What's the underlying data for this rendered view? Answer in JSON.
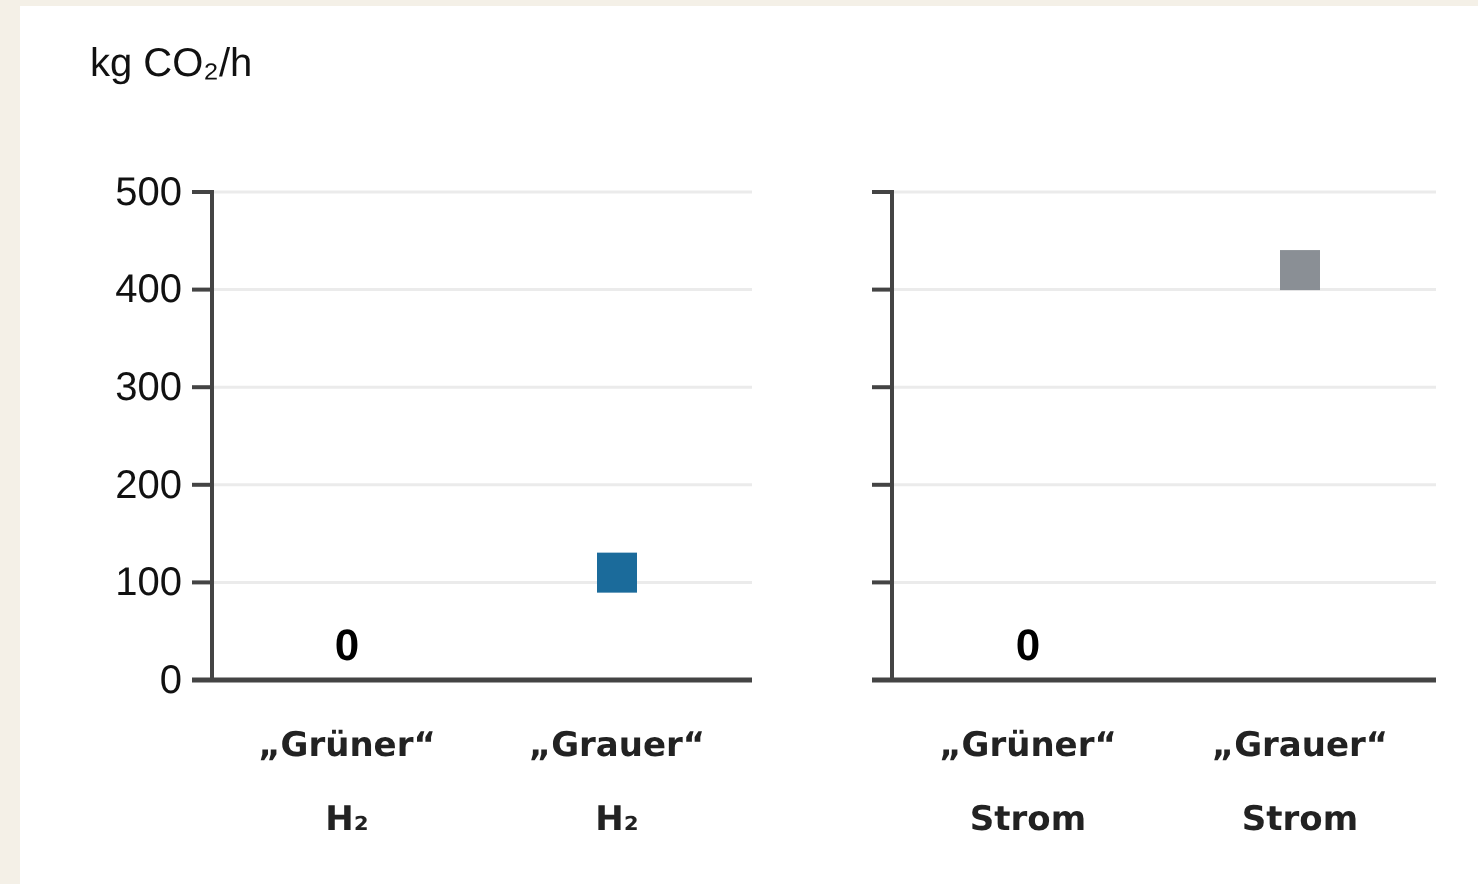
{
  "chart_data": [
    {
      "type": "scatter",
      "title": "kg CO₂/h",
      "categories": [
        "„Grüner“ H₂",
        "„Grauer“ H₂"
      ],
      "series": [
        {
          "color": "#1b6b9b",
          "values": [
            null,
            110
          ]
        }
      ],
      "ylim": [
        0,
        500
      ],
      "yticks": [
        0,
        100,
        200,
        300,
        400,
        500
      ],
      "grid": "y",
      "marker": "square",
      "annotations": [
        "0"
      ]
    },
    {
      "type": "scatter",
      "categories": [
        "„Grüner“ Strom",
        "„Grauer“ Strom"
      ],
      "series": [
        {
          "color": "#8a8f95",
          "values": [
            null,
            420
          ]
        }
      ],
      "ylim": [
        0,
        500
      ],
      "yticks": [
        0,
        100,
        200,
        300,
        400,
        500
      ],
      "grid": "y",
      "marker": "square",
      "tick_labels": "x",
      "annotations": [
        "0"
      ]
    }
  ]
}
